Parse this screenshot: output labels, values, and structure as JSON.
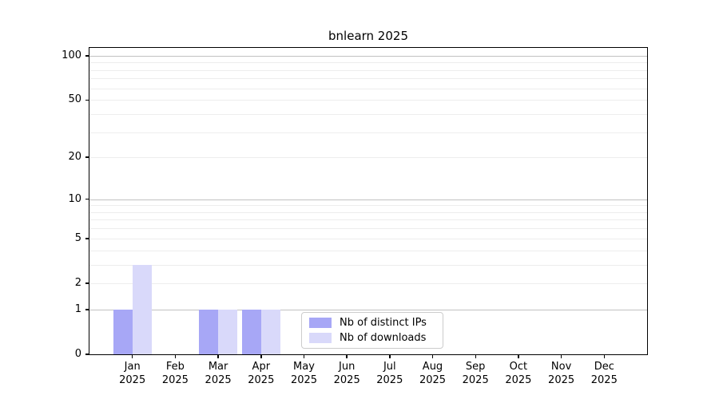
{
  "title": "bnlearn 2025",
  "chart_data": {
    "type": "bar",
    "title": "bnlearn 2025",
    "categories": [
      "Jan 2025",
      "Feb 2025",
      "Mar 2025",
      "Apr 2025",
      "May 2025",
      "Jun 2025",
      "Jul 2025",
      "Aug 2025",
      "Sep 2025",
      "Oct 2025",
      "Nov 2025",
      "Dec 2025"
    ],
    "series": [
      {
        "name": "Nb of distinct IPs",
        "color": "#a7a7f6",
        "values": [
          1,
          0,
          1,
          1,
          0,
          0,
          0,
          0,
          0,
          0,
          0,
          0
        ]
      },
      {
        "name": "Nb of downloads",
        "color": "#d9d9fa",
        "values": [
          3,
          0,
          1,
          1,
          0,
          0,
          0,
          0,
          0,
          0,
          0,
          0
        ]
      }
    ],
    "xlabel": "",
    "ylabel": "",
    "yscale": "log10(1+x)",
    "ylim": [
      0,
      113
    ],
    "yticks": [
      0,
      1,
      2,
      5,
      10,
      20,
      50,
      100
    ],
    "grid_major": [
      1,
      10,
      100
    ],
    "grid_minor": [
      2,
      3,
      4,
      5,
      6,
      7,
      8,
      9,
      20,
      30,
      40,
      50,
      60,
      70,
      80,
      90
    ],
    "grid": "on",
    "legend_position": "lower center"
  },
  "colors": {
    "grid_major": "#c2c2c2",
    "grid_minor": "#ededed",
    "spine": "#000000",
    "legend_border": "#cccccc",
    "background": "#ffffff",
    "text": "#000000"
  }
}
